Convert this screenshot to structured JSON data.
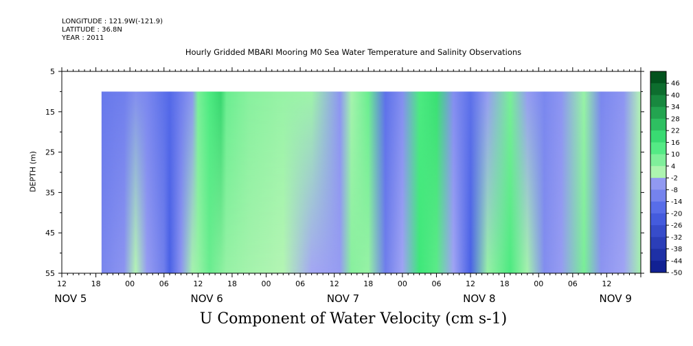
{
  "header": {
    "longitude": "LONGITUDE : 121.9W(-121.9)",
    "latitude": "LATITUDE : 36.8N",
    "year": "YEAR : 2011"
  },
  "chart_data": {
    "type": "heatmap",
    "title": "Hourly Gridded MBARI Mooring M0 Sea Water Temperature and Salinity Observations",
    "xlabel": "U Component of Water Velocity (cm s-1)",
    "ylabel": "DEPTH (m)",
    "y_range": [
      5,
      55
    ],
    "y_ticks": [
      5,
      15,
      25,
      35,
      45,
      55
    ],
    "y_reversed": true,
    "data_depth_range": [
      10,
      55
    ],
    "x_range_hours": [
      0,
      102
    ],
    "x_tick_labels": [
      "12",
      "18",
      "00",
      "06",
      "12",
      "18",
      "00",
      "06",
      "12",
      "18",
      "00",
      "06",
      "12",
      "18",
      "00",
      "06",
      "12"
    ],
    "x_date_labels": [
      "NOV  5",
      "NOV  6",
      "NOV  7",
      "NOV  8",
      "NOV  9"
    ],
    "colorbar": {
      "levels": [
        -50,
        -44,
        -38,
        -32,
        -26,
        -20,
        -14,
        -8,
        -2,
        4,
        10,
        16,
        22,
        28,
        34,
        40,
        46
      ],
      "labels": [
        "46",
        "40",
        "34",
        "28",
        "22",
        "16",
        "10",
        "4",
        "-2",
        "-8",
        "-14",
        "-20",
        "-26",
        "-32",
        "-38",
        "-44",
        "-50"
      ]
    },
    "time_columns": [
      {
        "hour": 0,
        "top": null,
        "bottom": null
      },
      {
        "hour": 6,
        "top": null,
        "bottom": null
      },
      {
        "hour": 7,
        "top": -14,
        "bottom": -10
      },
      {
        "hour": 11,
        "top": -12,
        "bottom": -6
      },
      {
        "hour": 13,
        "top": -8,
        "bottom": 0
      },
      {
        "hour": 15,
        "top": -10,
        "bottom": -4
      },
      {
        "hour": 18,
        "top": -16,
        "bottom": -12
      },
      {
        "hour": 19,
        "top": -18,
        "bottom": -20
      },
      {
        "hour": 21,
        "top": -12,
        "bottom": -6
      },
      {
        "hour": 23,
        "top": -6,
        "bottom": 2
      },
      {
        "hour": 24,
        "top": 8,
        "bottom": 4
      },
      {
        "hour": 26,
        "top": 14,
        "bottom": 10
      },
      {
        "hour": 28,
        "top": 20,
        "bottom": 6
      },
      {
        "hour": 29,
        "top": 10,
        "bottom": 4
      },
      {
        "hour": 33,
        "top": 6,
        "bottom": 2
      },
      {
        "hour": 39,
        "top": 4,
        "bottom": 0
      },
      {
        "hour": 44,
        "top": 3,
        "bottom": -1
      },
      {
        "hour": 49,
        "top": -6,
        "bottom": -4
      },
      {
        "hour": 51,
        "top": 2,
        "bottom": 6
      },
      {
        "hour": 54,
        "top": 10,
        "bottom": 4
      },
      {
        "hour": 57,
        "top": -16,
        "bottom": -12
      },
      {
        "hour": 60,
        "top": -8,
        "bottom": -2
      },
      {
        "hour": 63,
        "top": 14,
        "bottom": 16
      },
      {
        "hour": 66,
        "top": 18,
        "bottom": 12
      },
      {
        "hour": 69,
        "top": -8,
        "bottom": -2
      },
      {
        "hour": 72,
        "top": -16,
        "bottom": -20
      },
      {
        "hour": 75,
        "top": -4,
        "bottom": 4
      },
      {
        "hour": 79,
        "top": 8,
        "bottom": 14
      },
      {
        "hour": 82,
        "top": -4,
        "bottom": 2
      },
      {
        "hour": 85,
        "top": -10,
        "bottom": -8
      },
      {
        "hour": 88,
        "top": -6,
        "bottom": -4
      },
      {
        "hour": 92,
        "top": 4,
        "bottom": 8
      },
      {
        "hour": 95,
        "top": -10,
        "bottom": -6
      },
      {
        "hour": 99,
        "top": -6,
        "bottom": -2
      },
      {
        "hour": 102,
        "top": 0,
        "bottom": 2
      }
    ],
    "colors": {
      "neg_deep": "#0b1a8a",
      "neg_mid": "#4a62e6",
      "neg_light": "#a9abf5",
      "pos_light": "#b4f5b4",
      "pos_mid": "#3ee87a",
      "pos_deep": "#004d1a"
    }
  }
}
